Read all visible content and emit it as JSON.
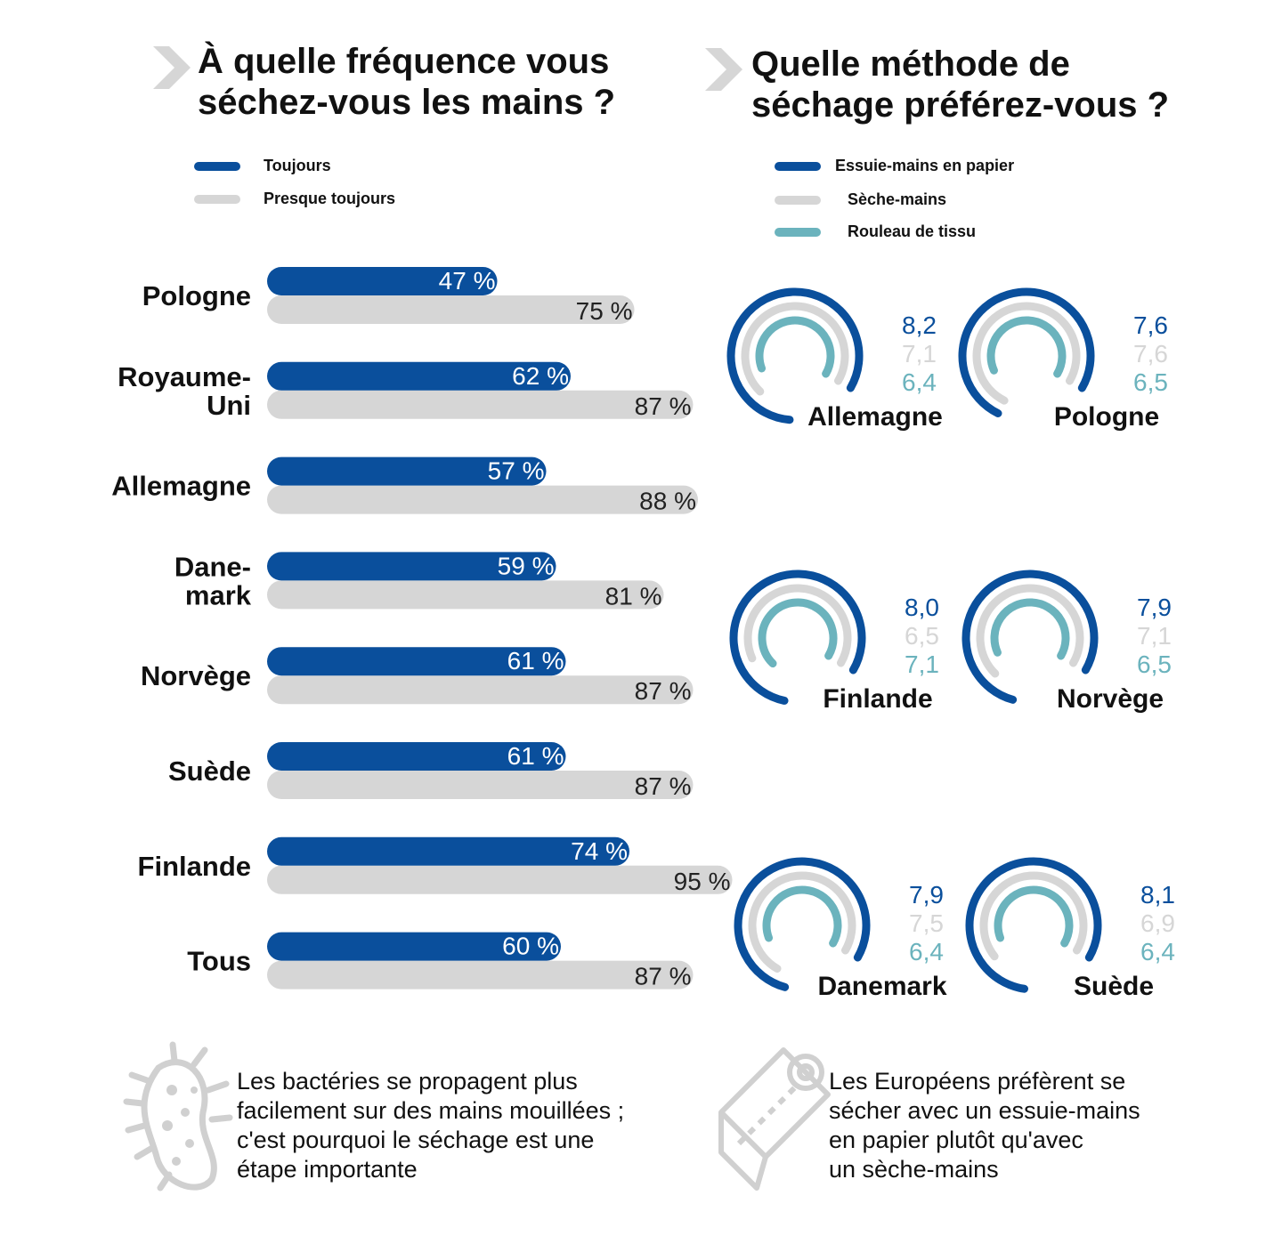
{
  "colors": {
    "navy": "#0a4f9c",
    "gray": "#d6d6d6",
    "teal": "#6bb3bd",
    "icon": "#d0d0d0"
  },
  "left_title": "À quelle fréquence vous\nséchez-vous les mains ?",
  "right_title": "Quelle méthode de\nséchage préférez-vous ?",
  "left_legend": [
    "Toujours",
    "Presque toujours"
  ],
  "right_legend": [
    "Essuie-mains en papier",
    "Sèche-mains",
    "Rouleau de tissu"
  ],
  "icons": [
    "chevron-right-icon",
    "bacteria-icon",
    "paper-roll-icon"
  ],
  "footnote_left": "Les bactéries se propagent plus\nfacilement sur des mains mouillées ;\nc'est pourquoi le séchage est une\nétape importante",
  "footnote_right": "Les Européens préfèrent se\nsécher avec un essuie-mains\nen papier plutôt qu'avec\nun sèche-mains",
  "chart_data": [
    {
      "type": "bar",
      "orientation": "horizontal",
      "categories": [
        "Pologne",
        "Royaume-\nUni",
        "Allemagne",
        "Dane-\nmark",
        "Norvège",
        "Suède",
        "Finlande",
        "Tous"
      ],
      "series": [
        {
          "name": "Toujours",
          "values": [
            47,
            62,
            57,
            59,
            61,
            61,
            74,
            60
          ],
          "labels": [
            "47 %",
            "62 %",
            "57 %",
            "59 %",
            "61 %",
            "61 %",
            "74 %",
            "60 %"
          ]
        },
        {
          "name": "Presque toujours",
          "values": [
            75,
            87,
            88,
            81,
            87,
            87,
            95,
            87
          ],
          "labels": [
            "75 %",
            "87 %",
            "88 %",
            "81 %",
            "87 %",
            "87 %",
            "95 %",
            "87 %"
          ]
        }
      ],
      "xlim": [
        0,
        100
      ]
    },
    {
      "type": "radial_bar",
      "series_names": [
        "Essuie-mains en papier",
        "Sèche-mains",
        "Rouleau de tissu"
      ],
      "scale_max": 10,
      "countries": [
        {
          "name": "Allemagne",
          "values": [
            8.2,
            7.1,
            6.4
          ],
          "labels": [
            "8,2",
            "7,1",
            "6,4"
          ]
        },
        {
          "name": "Pologne",
          "values": [
            7.6,
            7.6,
            6.5
          ],
          "labels": [
            "7,6",
            "7,6",
            "6,5"
          ]
        },
        {
          "name": "Finlande",
          "values": [
            8.0,
            6.5,
            7.1
          ],
          "labels": [
            "8,0",
            "6,5",
            "7,1"
          ]
        },
        {
          "name": "Norvège",
          "values": [
            7.9,
            7.1,
            6.5
          ],
          "labels": [
            "7,9",
            "7,1",
            "6,5"
          ]
        },
        {
          "name": "Danemark",
          "values": [
            7.9,
            7.5,
            6.4
          ],
          "labels": [
            "7,9",
            "7,5",
            "6,4"
          ]
        },
        {
          "name": "Suède",
          "values": [
            8.1,
            6.9,
            6.4
          ],
          "labels": [
            "8,1",
            "6,9",
            "6,4"
          ]
        }
      ]
    }
  ]
}
